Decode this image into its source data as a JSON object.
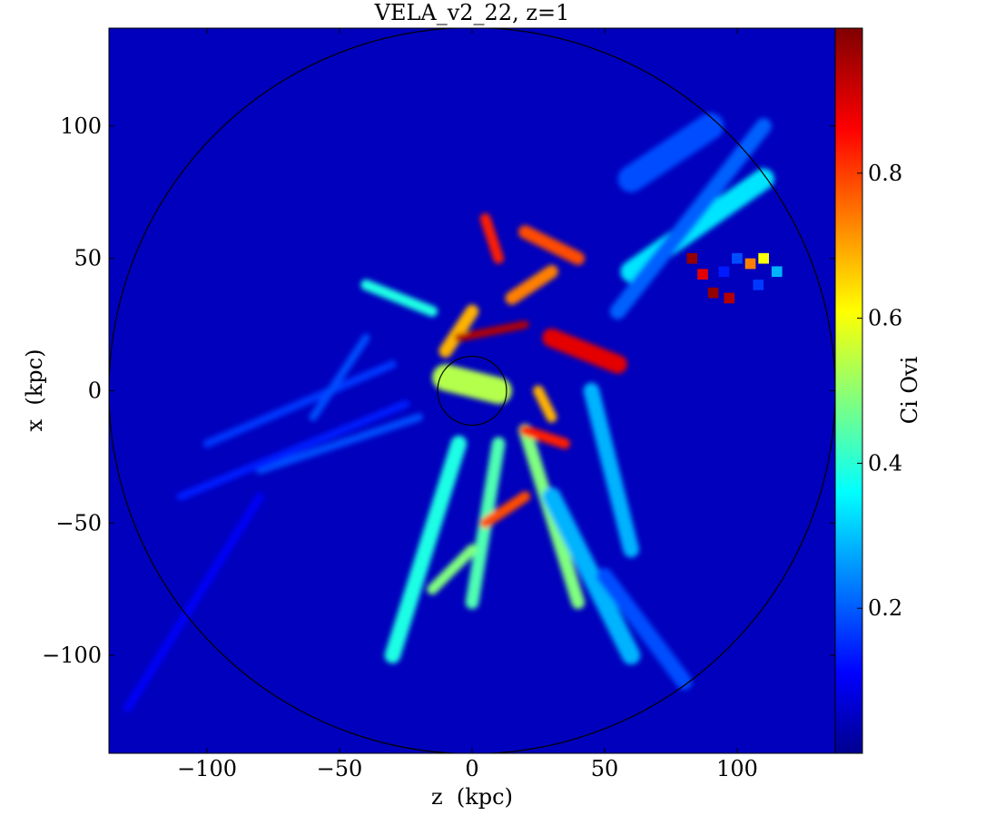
{
  "chart_data": {
    "type": "heatmap",
    "title": "VELA_v2_22, z=1",
    "xlabel": "z  (kpc)",
    "ylabel": "x  (kpc)",
    "xlim": [
      -137,
      137
    ],
    "ylim": [
      -137,
      137
    ],
    "xticks": [
      {
        "value": -100,
        "label": "−100"
      },
      {
        "value": -50,
        "label": "−50"
      },
      {
        "value": 0,
        "label": "0"
      },
      {
        "value": 50,
        "label": "50"
      },
      {
        "value": 100,
        "label": "100"
      }
    ],
    "yticks": [
      {
        "value": 100,
        "label": "100"
      },
      {
        "value": 50,
        "label": "50"
      },
      {
        "value": 0,
        "label": "0"
      },
      {
        "value": -50,
        "label": "−50"
      },
      {
        "value": -100,
        "label": "−100"
      }
    ],
    "colorbar": {
      "label": "Ci Ovi",
      "range": [
        0.0,
        1.0
      ],
      "colormap": "jet",
      "ticks": [
        {
          "value": 0.2,
          "label": "0.2"
        },
        {
          "value": 0.4,
          "label": "0.4"
        },
        {
          "value": 0.6,
          "label": "0.6"
        },
        {
          "value": 0.8,
          "label": "0.8"
        }
      ]
    },
    "circles": [
      {
        "cx": 0,
        "cy": 0,
        "r": 137,
        "color": "#000000"
      },
      {
        "cx": 0,
        "cy": 0,
        "r": 13,
        "color": "#000000"
      }
    ],
    "background_value": 0.06,
    "features": [
      {
        "kind": "filament",
        "x1": -10,
        "y1": 5,
        "x2": 10,
        "y2": 0,
        "value": 0.55,
        "width": 10
      },
      {
        "kind": "filament",
        "x1": 30,
        "y1": 20,
        "x2": 55,
        "y2": 10,
        "value": 0.9,
        "width": 7
      },
      {
        "kind": "filament",
        "x1": 40,
        "y1": 50,
        "x2": 20,
        "y2": 60,
        "value": 0.8,
        "width": 5
      },
      {
        "kind": "filament",
        "x1": 5,
        "y1": 65,
        "x2": 10,
        "y2": 50,
        "value": 0.85,
        "width": 4
      },
      {
        "kind": "filament",
        "x1": 60,
        "y1": 45,
        "x2": 110,
        "y2": 80,
        "value": 0.35,
        "width": 8
      },
      {
        "kind": "filament",
        "x1": 55,
        "y1": 30,
        "x2": 110,
        "y2": 100,
        "value": 0.22,
        "width": 6
      },
      {
        "kind": "filament",
        "x1": -5,
        "y1": -20,
        "x2": -30,
        "y2": -100,
        "value": 0.4,
        "width": 6
      },
      {
        "kind": "filament",
        "x1": 10,
        "y1": -20,
        "x2": 0,
        "y2": -80,
        "value": 0.45,
        "width": 5
      },
      {
        "kind": "filament",
        "x1": 20,
        "y1": -15,
        "x2": 40,
        "y2": -80,
        "value": 0.5,
        "width": 5
      },
      {
        "kind": "filament",
        "x1": 30,
        "y1": -40,
        "x2": 60,
        "y2": -100,
        "value": 0.3,
        "width": 7
      },
      {
        "kind": "filament",
        "x1": 20,
        "y1": -40,
        "x2": 5,
        "y2": -50,
        "value": 0.8,
        "width": 4
      },
      {
        "kind": "filament",
        "x1": 35,
        "y1": -20,
        "x2": 20,
        "y2": -15,
        "value": 0.85,
        "width": 4
      },
      {
        "kind": "filament",
        "x1": -15,
        "y1": 30,
        "x2": -40,
        "y2": 40,
        "value": 0.4,
        "width": 4
      },
      {
        "kind": "filament",
        "x1": -10,
        "y1": 15,
        "x2": 0,
        "y2": 30,
        "value": 0.7,
        "width": 5
      },
      {
        "kind": "filament",
        "x1": 15,
        "y1": 35,
        "x2": 30,
        "y2": 45,
        "value": 0.75,
        "width": 5
      },
      {
        "kind": "filament",
        "x1": -20,
        "y1": -10,
        "x2": -80,
        "y2": -30,
        "value": 0.2,
        "width": 3
      },
      {
        "kind": "filament",
        "x1": -25,
        "y1": -5,
        "x2": -110,
        "y2": -40,
        "value": 0.15,
        "width": 3
      },
      {
        "kind": "filament",
        "x1": -30,
        "y1": 10,
        "x2": -100,
        "y2": -20,
        "value": 0.18,
        "width": 3
      },
      {
        "kind": "filament",
        "x1": -40,
        "y1": 20,
        "x2": -60,
        "y2": -10,
        "value": 0.2,
        "width": 3
      },
      {
        "kind": "filament",
        "x1": -80,
        "y1": -40,
        "x2": -130,
        "y2": -120,
        "value": 0.12,
        "width": 3
      },
      {
        "kind": "filament",
        "x1": 45,
        "y1": 0,
        "x2": 60,
        "y2": -60,
        "value": 0.3,
        "width": 6
      },
      {
        "kind": "filament",
        "x1": 50,
        "y1": -70,
        "x2": 80,
        "y2": -110,
        "value": 0.2,
        "width": 6
      },
      {
        "kind": "filament",
        "x1": -5,
        "y1": 20,
        "x2": 20,
        "y2": 25,
        "value": 0.95,
        "width": 3
      },
      {
        "kind": "filament",
        "x1": 25,
        "y1": 0,
        "x2": 30,
        "y2": -10,
        "value": 0.7,
        "width": 4
      },
      {
        "kind": "filament",
        "x1": 0,
        "y1": -60,
        "x2": -15,
        "y2": -75,
        "value": 0.5,
        "width": 4
      },
      {
        "kind": "filament",
        "x1": 60,
        "y1": 80,
        "x2": 90,
        "y2": 100,
        "value": 0.2,
        "width": 10
      }
    ],
    "patches": [
      {
        "x": 83,
        "y": 50,
        "value": 0.98
      },
      {
        "x": 87,
        "y": 44,
        "value": 0.9
      },
      {
        "x": 91,
        "y": 37,
        "value": 0.98
      },
      {
        "x": 97,
        "y": 35,
        "value": 0.95
      },
      {
        "x": 105,
        "y": 48,
        "value": 0.75
      },
      {
        "x": 110,
        "y": 50,
        "value": 0.62
      },
      {
        "x": 115,
        "y": 45,
        "value": 0.3
      },
      {
        "x": 100,
        "y": 50,
        "value": 0.2
      },
      {
        "x": 95,
        "y": 45,
        "value": 0.15
      },
      {
        "x": 108,
        "y": 40,
        "value": 0.18
      }
    ]
  }
}
